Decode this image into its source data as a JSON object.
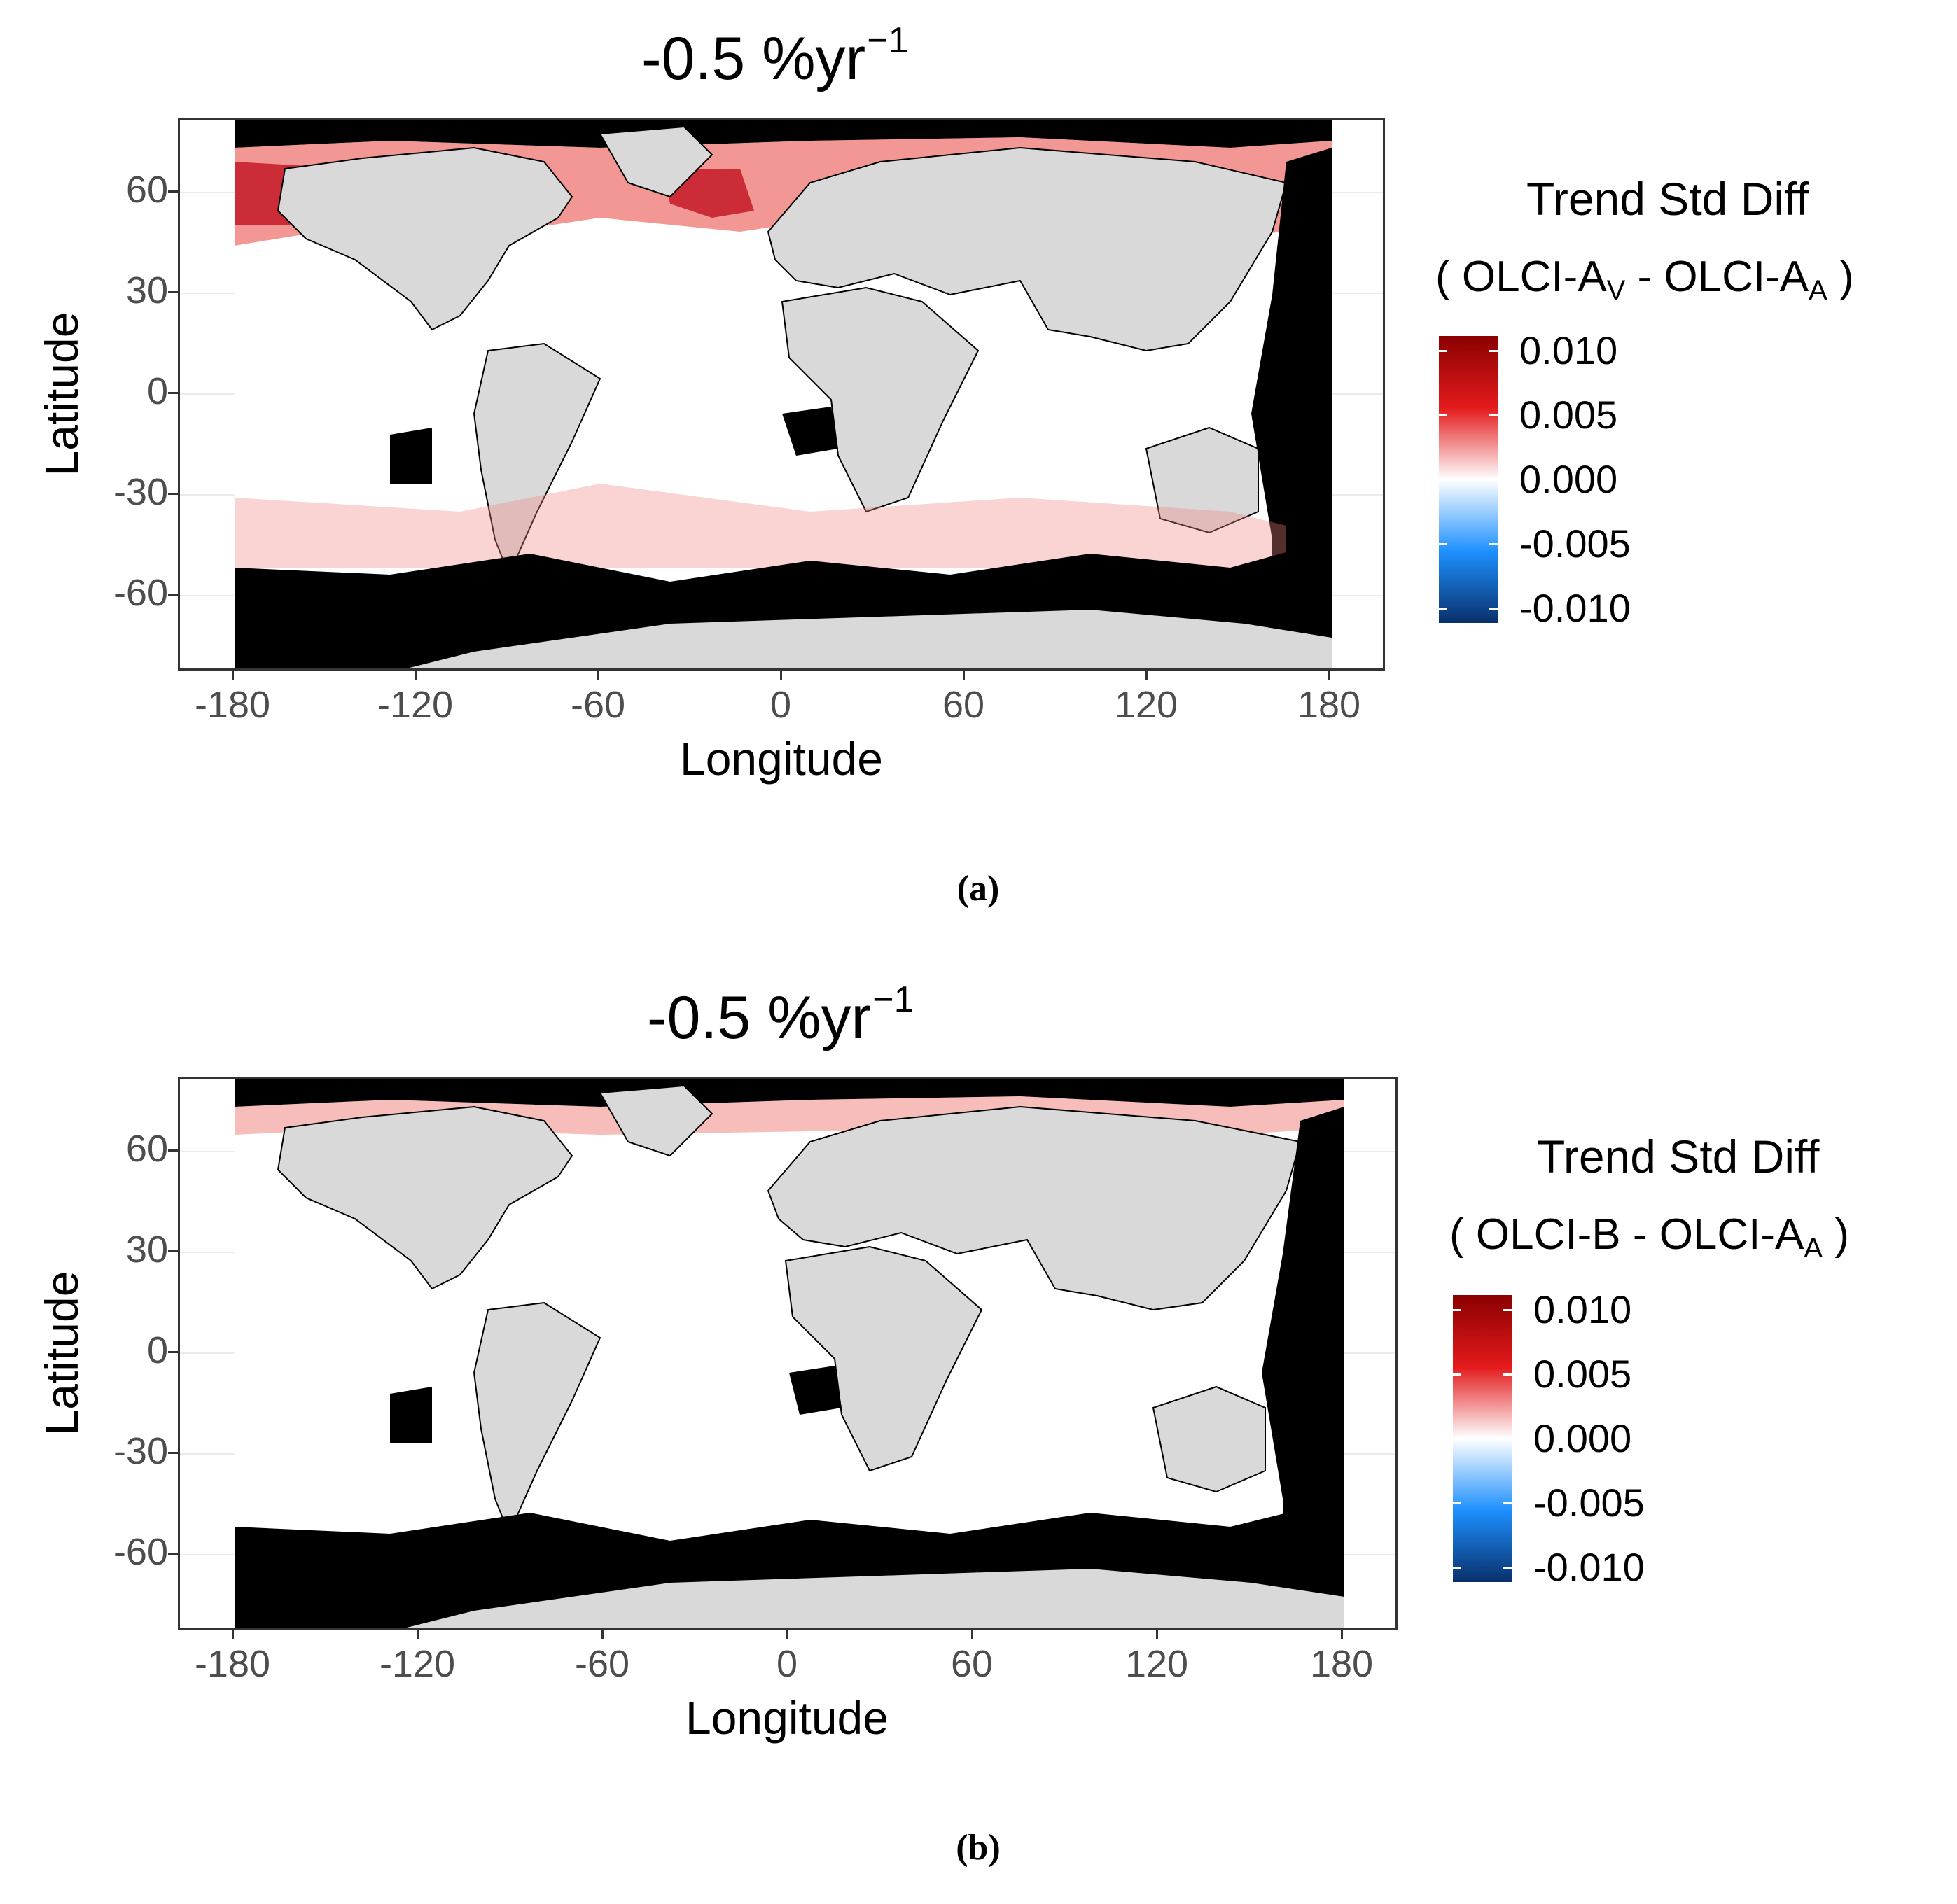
{
  "panels": [
    {
      "id": "a",
      "title_main": "-0.5 %yr",
      "title_sup": "−1",
      "legend_title": "Trend Std Diff",
      "legend_sub_a": "( OLCI-A",
      "legend_sub_a_sub": "V",
      "legend_sub_mid": " - OLCI-A",
      "legend_sub_b_sub": "A",
      "legend_sub_end": " )",
      "caption": "(a)"
    },
    {
      "id": "b",
      "title_main": "-0.5 %yr",
      "title_sup": "−1",
      "legend_title": "Trend Std Diff",
      "legend_sub_a": "( OLCI-B",
      "legend_sub_a_sub": "",
      "legend_sub_mid": "  - OLCI-A",
      "legend_sub_b_sub": "A",
      "legend_sub_end": " )",
      "caption": "(b)"
    }
  ],
  "axes": {
    "xlabel": "Longitude",
    "ylabel": "Latitude",
    "x_ticks": [
      "-180",
      "-120",
      "-60",
      "0",
      "60",
      "120",
      "180"
    ],
    "y_ticks": [
      "60",
      "30",
      "0",
      "-30",
      "-60"
    ]
  },
  "colorbar": {
    "labels": [
      "0.010",
      "0.005",
      "0.000",
      "-0.005",
      "-0.010"
    ],
    "colors": [
      "#8b0000",
      "#e41a1c",
      "#ffffff",
      "#1e90ff",
      "#08306b"
    ],
    "range": [
      -0.01,
      0.01
    ]
  },
  "map_colors": {
    "land": "#d9d9d9",
    "no_data": "#000000",
    "ocean_zero": "#ffffff"
  }
}
